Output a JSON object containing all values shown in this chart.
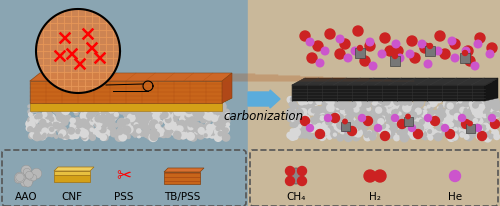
{
  "bg_left": "#8aa5b2",
  "bg_right": "#c9b89a",
  "arrow_color": "#5aacdc",
  "carbonization_text": "carbonization",
  "carbonization_fontsize": 8.5,
  "legend_left_labels": [
    "AAO",
    "CNF",
    "PSS",
    "TB/PSS"
  ],
  "legend_right_labels": [
    "CH₄",
    "H₂",
    "He"
  ],
  "legend_left_bg": "#8aa5b2",
  "legend_right_bg": "#c9b89a",
  "dashed_border_color": "#555555",
  "gravel_c1": "#b8b8b8",
  "gravel_c2": "#d8d8d8",
  "cnf_color": "#d4a017",
  "tbpss_color": "#c8651a",
  "tbpss_dark": "#a04010",
  "carbon_color": "#1c1c1c",
  "red_mol": "#cc2222",
  "pink_mol": "#cc55cc",
  "ch4_gray": "#888888"
}
